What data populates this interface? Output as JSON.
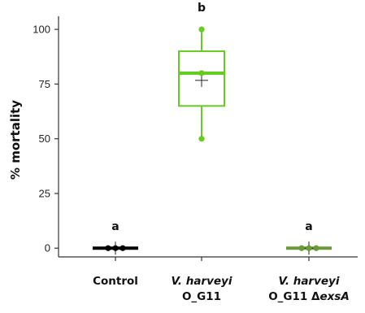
{
  "chart_data": {
    "type": "box",
    "title": "",
    "xlabel": "",
    "ylabel": "% mortality",
    "ylim": [
      -4,
      106
    ],
    "yticks": [
      0,
      25,
      50,
      75,
      100
    ],
    "grid": false,
    "legend": "none",
    "categories": [
      {
        "lines": [
          {
            "text": "Control",
            "italic": false
          }
        ]
      },
      {
        "lines": [
          {
            "text": "V. harveyi",
            "italic": true
          },
          {
            "text": "O_G11",
            "italic": false
          }
        ]
      },
      {
        "lines": [
          {
            "text": "V. harveyi",
            "italic": true
          },
          {
            "text": "O_G11 Δ",
            "italic": false,
            "suffix": "exsA",
            "suffix_italic": true
          }
        ]
      }
    ],
    "groups": [
      {
        "color": "#000000",
        "q1": 0,
        "median": 0,
        "q3": 0,
        "whisker_low": 0,
        "whisker_high": 0,
        "mean": 0,
        "points": [
          0,
          0,
          0
        ],
        "significance": "a"
      },
      {
        "color": "#66cc22",
        "q1": 65,
        "median": 80,
        "q3": 90,
        "whisker_low": 50,
        "whisker_high": 100,
        "mean": 76.7,
        "points": [
          50,
          80,
          100
        ],
        "significance": "b"
      },
      {
        "color": "#6b9a3a",
        "q1": 0,
        "median": 0,
        "q3": 0,
        "whisker_low": 0,
        "whisker_high": 0,
        "mean": 0,
        "points": [
          0,
          0,
          0
        ],
        "significance": "a"
      }
    ]
  }
}
